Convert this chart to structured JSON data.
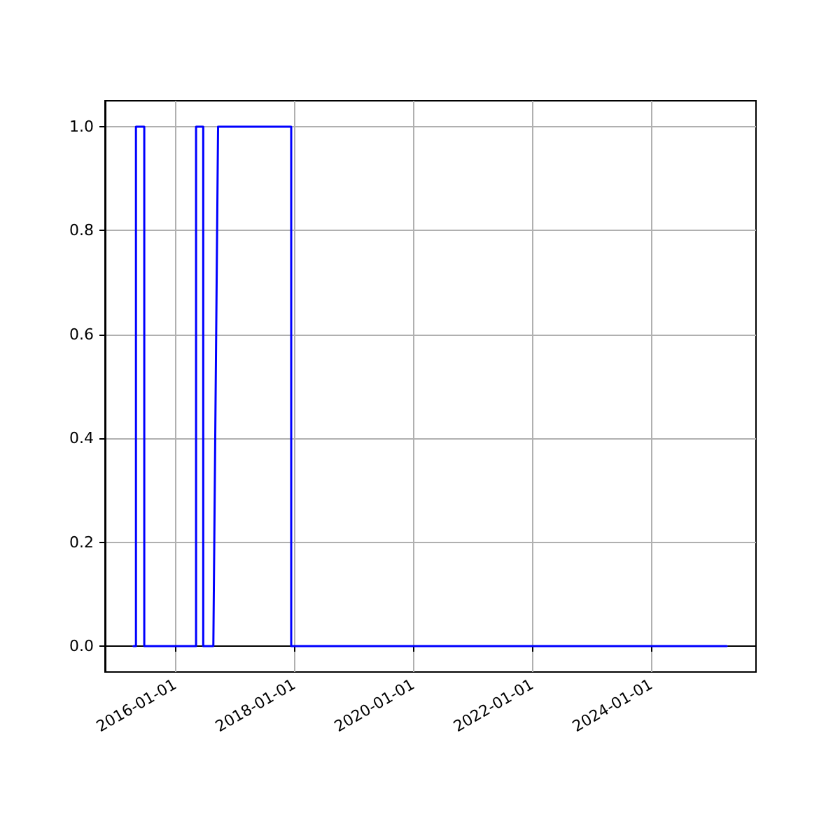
{
  "chart_data": {
    "type": "line",
    "x": [
      "2015-04-20",
      "2015-05-05",
      "2015-05-05",
      "2015-06-25",
      "2015-06-25",
      "2016-05-08",
      "2016-05-08",
      "2016-06-21",
      "2016-06-21",
      "2016-08-22",
      "2016-09-20",
      "2017-12-13",
      "2017-12-13",
      "2025-04-08"
    ],
    "series": [
      {
        "color": "#0000ff",
        "values": [
          0,
          0,
          1,
          1,
          0,
          0,
          1,
          1,
          0,
          0,
          1,
          1,
          0,
          0
        ]
      }
    ],
    "xlim": [
      "2014-10-27",
      "2025-10-05"
    ],
    "xticks": [
      {
        "value": "2016-01-01",
        "label": "2016-01-01"
      },
      {
        "value": "2018-01-01",
        "label": "2018-01-01"
      },
      {
        "value": "2020-01-01",
        "label": "2020-01-01"
      },
      {
        "value": "2022-01-01",
        "label": "2022-01-01"
      },
      {
        "value": "2024-01-01",
        "label": "2024-01-01"
      }
    ],
    "ylim": [
      -0.05,
      1.05
    ],
    "yticks": [
      {
        "value": 0,
        "label": "0.0"
      },
      {
        "value": 0.2,
        "label": "0.2"
      },
      {
        "value": 0.4,
        "label": "0.4"
      },
      {
        "value": 0.6,
        "label": "0.6"
      },
      {
        "value": 0.8,
        "label": "0.8"
      },
      {
        "value": 1,
        "label": "1.0"
      }
    ],
    "grid": true,
    "marker": "none",
    "line_style": "solid"
  }
}
